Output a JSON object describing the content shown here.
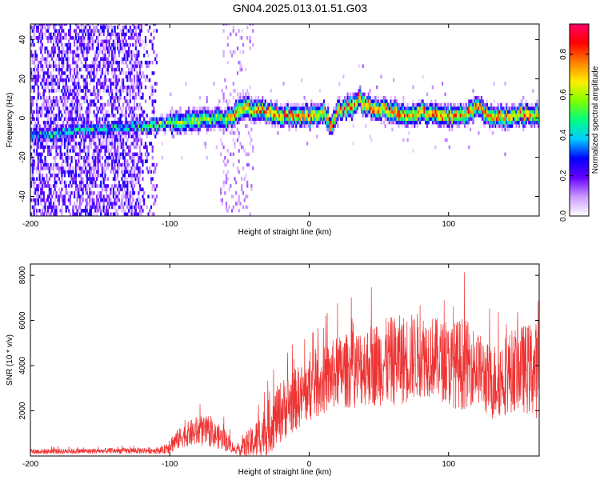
{
  "title": "GN04.2025.013.01.51.G03",
  "chart_data": [
    {
      "type": "heatmap",
      "xlabel": "Height of straight line (km)",
      "ylabel": "Frequency (Hz)",
      "xlim": [
        -200,
        165
      ],
      "ylim": [
        -50,
        48
      ],
      "x_ticks": [
        -200,
        -100,
        0,
        100
      ],
      "y_ticks": [
        40,
        20,
        0,
        -20,
        -40
      ],
      "colorbar": {
        "label": "Normalized spectral amplitude",
        "range": [
          0,
          0.95
        ],
        "ticks": [
          0.0,
          0.2,
          0.4,
          0.6,
          0.8
        ],
        "colors": [
          "#ffffff",
          "#cc99ff",
          "#6600ff",
          "#0000ff",
          "#00ccff",
          "#00ff80",
          "#80ff00",
          "#ffee00",
          "#ff8000",
          "#ff0000",
          "#ff0066"
        ]
      },
      "ridge": {
        "x": [
          -200,
          -160,
          -120,
          -100,
          -80,
          -60,
          -45,
          -30,
          -20,
          -10,
          0,
          10,
          15,
          20,
          30,
          35,
          40,
          50,
          60,
          70,
          80,
          90,
          100,
          110,
          120,
          130,
          140,
          150,
          165
        ],
        "y": [
          -10,
          -7,
          -5,
          -4,
          -2,
          -1,
          4,
          2,
          0,
          1,
          0,
          2,
          -5,
          3,
          5,
          9,
          5,
          4,
          2,
          0,
          2,
          1,
          0,
          0,
          4,
          0,
          -1,
          1,
          0
        ]
      },
      "noise_region": {
        "x_start": -200,
        "x_end": -110
      }
    },
    {
      "type": "line",
      "xlabel": "Height of straight line (km)",
      "ylabel": "SNR (10 * v/v)",
      "xlim": [
        -200,
        165
      ],
      "ylim": [
        0,
        8500
      ],
      "x_ticks": [
        -200,
        -100,
        0,
        100
      ],
      "y_ticks": [
        2000,
        4000,
        6000,
        8000
      ],
      "series": [
        {
          "color": "#ee3333",
          "envelope": {
            "x": [
              -200,
              -150,
              -105,
              -100,
              -90,
              -80,
              -70,
              -60,
              -52,
              -50,
              -40,
              -30,
              -20,
              -10,
              0,
              10,
              20,
              30,
              40,
              50,
              60,
              70,
              80,
              90,
              100,
              110,
              120,
              130,
              140,
              150,
              165
            ],
            "mean": [
              200,
              220,
              250,
              500,
              900,
              1100,
              1000,
              700,
              200,
              300,
              600,
              1200,
              2000,
              2500,
              2900,
              3300,
              3700,
              3800,
              4000,
              4100,
              4200,
              4300,
              4500,
              4400,
              4000,
              4100,
              4000,
              3200,
              3600,
              3900,
              3800
            ],
            "amp": [
              120,
              120,
              150,
              400,
              500,
              700,
              600,
              500,
              100,
              300,
              800,
              1200,
              1400,
              1400,
              1400,
              1500,
              1600,
              1700,
              1800,
              1900,
              2000,
              2000,
              1900,
              1800,
              1800,
              2100,
              1600,
              1700,
              1800,
              1900,
              2200
            ]
          }
        }
      ]
    }
  ]
}
